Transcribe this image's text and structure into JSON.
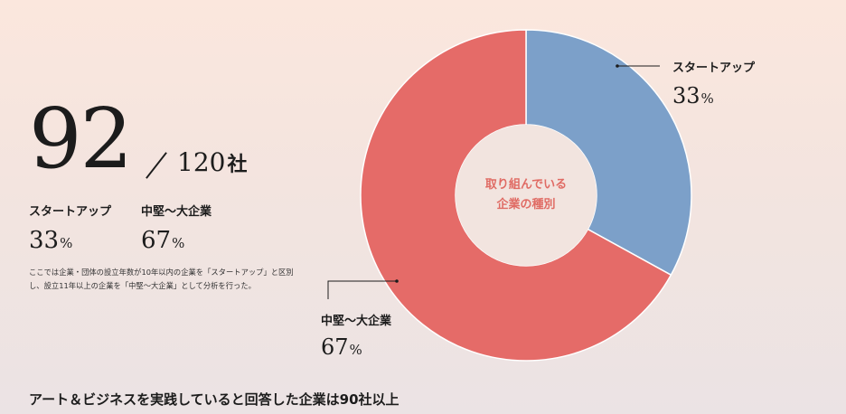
{
  "summary": {
    "count": "92",
    "total": "120",
    "total_unit": "社"
  },
  "stats": [
    {
      "label": "スタートアップ",
      "value": "33",
      "unit": "%"
    },
    {
      "label": "中堅〜大企業",
      "value": "67",
      "unit": "%"
    }
  ],
  "note": "ここでは企業・団体の設立年数が10年以内の企業を「スタートアップ」と区別し、設立11年以上の企業を「中堅〜大企業」として分析を行った。",
  "footer": "アート＆ビジネスを実践していると回答した企業は90社以上",
  "chart_data": {
    "type": "pie",
    "donut": true,
    "center_label": [
      "取り組んでいる",
      "企業の種別"
    ],
    "slices": [
      {
        "label": "スタートアップ",
        "value": 33,
        "display": "33",
        "unit": "%",
        "color": "#7ca0c9"
      },
      {
        "label": "中堅〜大企業",
        "value": 67,
        "display": "67",
        "unit": "%",
        "color": "#e56b68"
      }
    ]
  }
}
